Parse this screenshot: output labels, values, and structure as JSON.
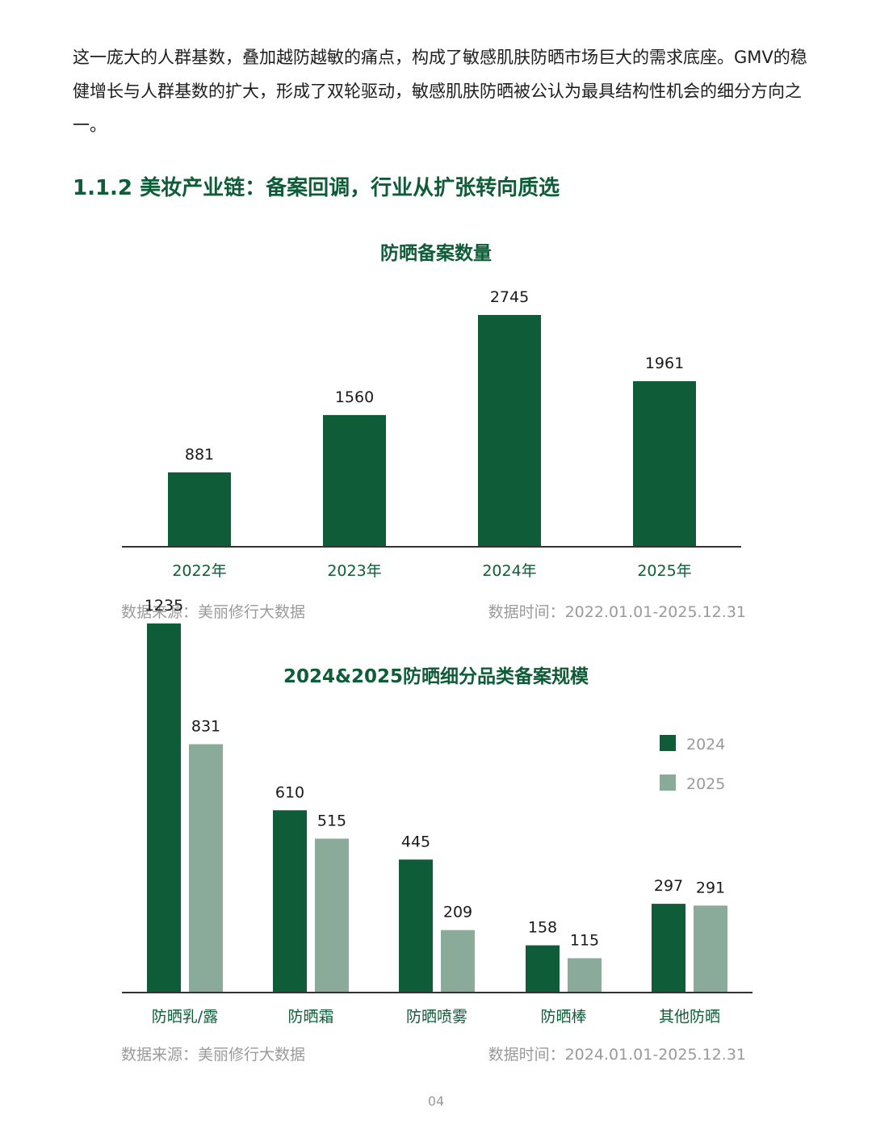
{
  "intro_text": "这一庞大的人群基数，叠加越防越敏的痛点，构成了敏感肌肤防晒市场巨大的需求底座。GMV的稳健增长与人群基数的扩大，形成了双轮驱动，敏感肌肤防晒被公认为最具结构性机会的细分方向之一。",
  "section_heading": "1.1.2 美妆产业链：备案回调，行业从扩张转向质选",
  "colors": {
    "dark_green": "#0e5c38",
    "light_green": "#8aab9a",
    "baseline": "#333333"
  },
  "chart_data": [
    {
      "type": "bar",
      "title": "防晒备案数量",
      "categories": [
        "2022年",
        "2023年",
        "2024年",
        "2025年"
      ],
      "values": [
        881,
        1560,
        2745,
        1961
      ],
      "ylim": [
        0,
        2745
      ],
      "grid": false,
      "source": "数据来源：美丽修行大数据",
      "period": "数据时间：2022.01.01-2025.12.31"
    },
    {
      "type": "bar",
      "title": "2024&2025防晒细分品类备案规模",
      "categories": [
        "防晒乳/露",
        "防晒霜",
        "防晒喷雾",
        "防晒棒",
        "其他防晒"
      ],
      "series": [
        {
          "name": "2024",
          "values": [
            1235,
            610,
            445,
            158,
            297
          ]
        },
        {
          "name": "2025",
          "values": [
            831,
            515,
            209,
            115,
            291
          ]
        }
      ],
      "ylim": [
        0,
        1235
      ],
      "grid": false,
      "legend": "top-right",
      "source": "数据来源：美丽修行大数据",
      "period": "数据时间：2024.01.01-2025.12.31"
    }
  ],
  "page_number": "04"
}
